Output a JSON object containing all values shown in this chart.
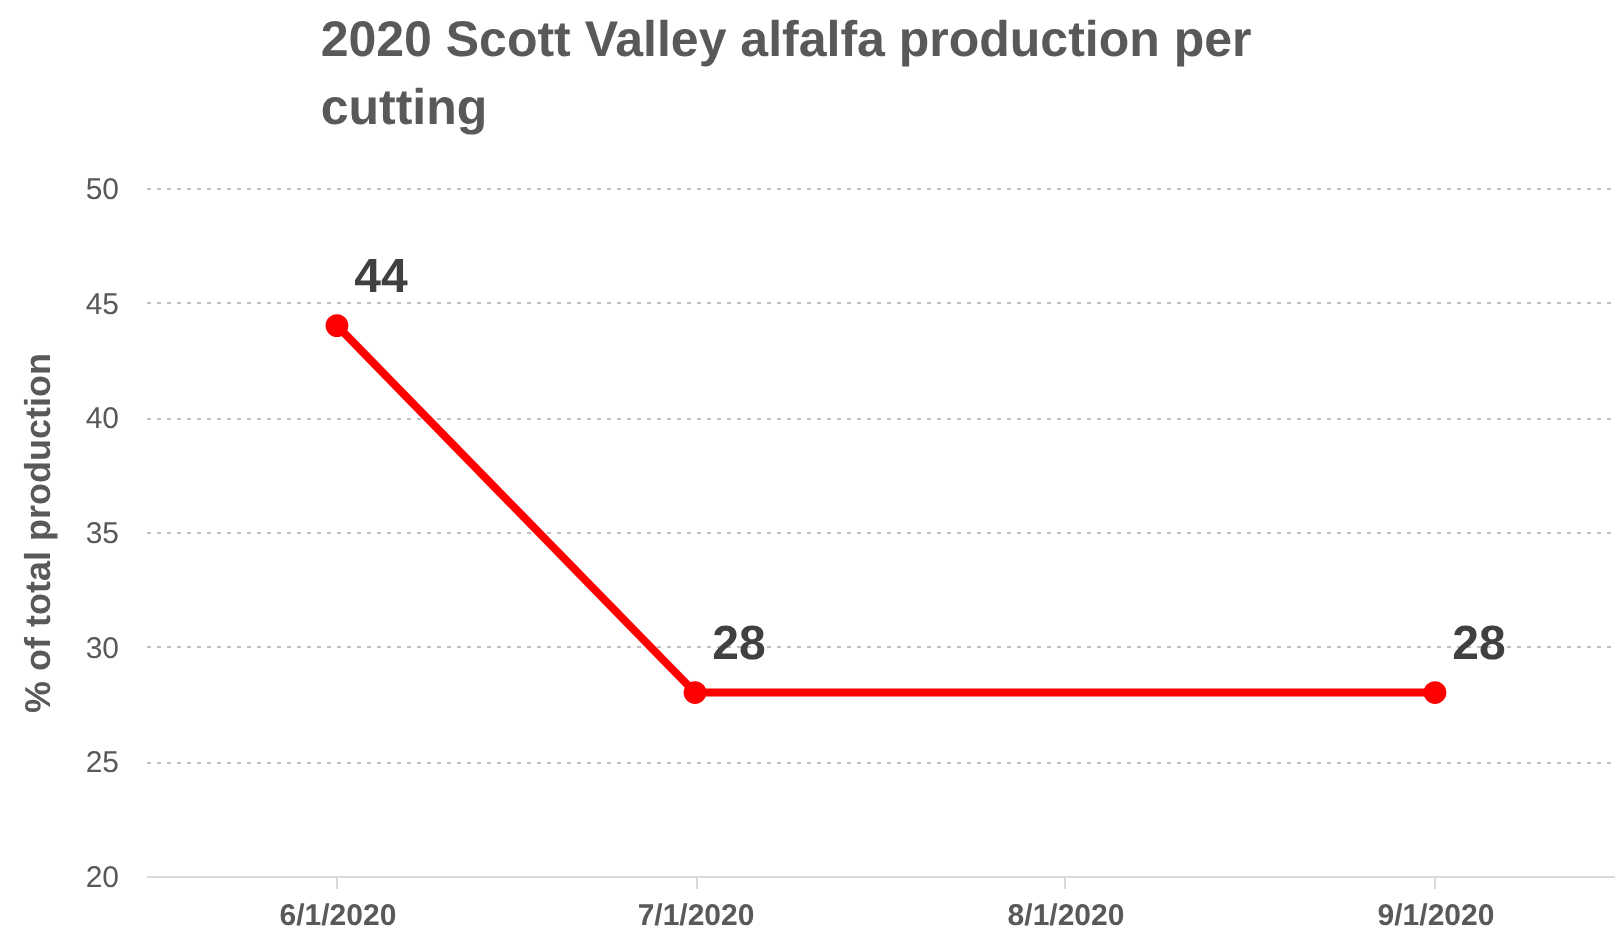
{
  "chart_data": {
    "type": "line",
    "title": "2020 Scott Valley alfalfa production per cutting",
    "ylabel": "% of total production",
    "x": [
      "2020-06-01",
      "2020-07-01",
      "2020-09-01"
    ],
    "series": [
      {
        "color": "#ff0000",
        "values": [
          44,
          28,
          28
        ]
      }
    ],
    "xlim": [
      "2020-05-16",
      "2020-09-16"
    ],
    "xticks": [
      {
        "value": "2020-06-01",
        "label": "6/1/2020"
      },
      {
        "value": "2020-07-01",
        "label": "7/1/2020"
      },
      {
        "value": "2020-08-01",
        "label": "8/1/2020"
      },
      {
        "value": "2020-09-01",
        "label": "9/1/2020"
      }
    ],
    "ylim": [
      20,
      50
    ],
    "yticks": [
      20,
      25,
      30,
      35,
      40,
      45,
      50
    ],
    "grid": "y",
    "marker": "circle",
    "line_style": "solid",
    "data_labels": true
  }
}
